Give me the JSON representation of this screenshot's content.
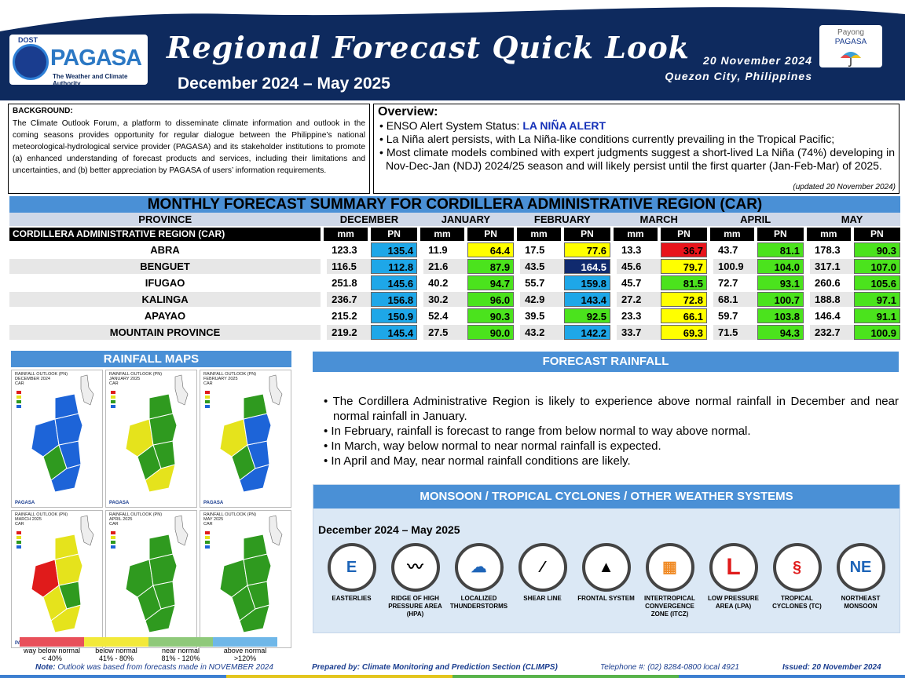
{
  "header": {
    "title": "Regional Forecast Quick Look",
    "period": "December 2024 – May 2025",
    "date": "20 November 2024",
    "place": "Quezon City, Philippines",
    "logo_top": "DOST",
    "logo_name": "PAGASA",
    "logo_tag": "The Weather and Climate Authority",
    "payong_1": "Payong",
    "payong_2": "PAGASA"
  },
  "background": {
    "heading": "BACKGROUND:",
    "text": "The Climate Outlook Forum, a platform to disseminate climate information and outlook in the coming seasons provides opportunity for regular dialogue between the Philippine’s national meteorological-hydrological service provider (PAGASA) and its stakeholder institutions to promote (a) enhanced understanding of forecast products and services, including their limitations and uncertainties, and (b) better appreciation by PAGASA of users’ information requirements."
  },
  "overview": {
    "heading": "Overview:",
    "enso_label": "ENSO Alert System Status: ",
    "enso_status": "LA NIÑA ALERT",
    "b2": "La Niña alert persists, with La Niña-like conditions currently prevailing in the Tropical Pacific;",
    "b3": "Most climate models combined with expert judgments suggest a short-lived La Niña (74%) developing in Nov-Dec-Jan (NDJ) 2024/25 season and will likely persist until the first quarter (Jan-Feb-Mar) of 2025.",
    "updated": "(updated 20 November 2024)"
  },
  "table": {
    "title": "MONTHLY FORECAST SUMMARY FOR CORDILLERA ADMINISTRATIVE REGION (CAR)",
    "province_header": "PROVINCE",
    "region": "CORDILLERA ADMINISTRATIVE REGION (CAR)",
    "months": [
      "DECEMBER",
      "JANUARY",
      "FEBRUARY",
      "MARCH",
      "APRIL",
      "MAY"
    ],
    "mm_label": "mm",
    "pn_label": "PN",
    "rows": [
      {
        "name": "ABRA",
        "mm": [
          "123.3",
          "11.9",
          "17.5",
          "13.3",
          "43.7",
          "178.3"
        ],
        "pn": [
          "135.4",
          "64.4",
          "77.6",
          "36.7",
          "81.1",
          "90.3"
        ],
        "cls": [
          "an",
          "bn",
          "bn",
          "wb",
          "nn",
          "nn"
        ]
      },
      {
        "name": "BENGUET",
        "mm": [
          "116.5",
          "21.6",
          "43.5",
          "45.6",
          "100.9",
          "317.1"
        ],
        "pn": [
          "112.8",
          "87.9",
          "164.5",
          "79.7",
          "104.0",
          "107.0"
        ],
        "cls": [
          "an",
          "nn",
          "wa",
          "bn",
          "nn",
          "nn"
        ]
      },
      {
        "name": "IFUGAO",
        "mm": [
          "251.8",
          "40.2",
          "55.7",
          "45.7",
          "72.7",
          "260.6"
        ],
        "pn": [
          "145.6",
          "94.7",
          "159.8",
          "81.5",
          "93.1",
          "105.6"
        ],
        "cls": [
          "an",
          "nn",
          "an",
          "nn",
          "nn",
          "nn"
        ]
      },
      {
        "name": "KALINGA",
        "mm": [
          "236.7",
          "30.2",
          "42.9",
          "27.2",
          "68.1",
          "188.8"
        ],
        "pn": [
          "156.8",
          "96.0",
          "143.4",
          "72.8",
          "100.7",
          "97.1"
        ],
        "cls": [
          "an",
          "nn",
          "an",
          "bn",
          "nn",
          "nn"
        ]
      },
      {
        "name": "APAYAO",
        "mm": [
          "215.2",
          "52.4",
          "39.5",
          "23.3",
          "59.7",
          "146.4"
        ],
        "pn": [
          "150.9",
          "90.3",
          "92.5",
          "66.1",
          "103.8",
          "91.1"
        ],
        "cls": [
          "an",
          "nn",
          "nn",
          "bn",
          "nn",
          "nn"
        ]
      },
      {
        "name": "MOUNTAIN PROVINCE",
        "mm": [
          "219.2",
          "27.5",
          "43.2",
          "33.7",
          "71.5",
          "232.7"
        ],
        "pn": [
          "145.4",
          "90.0",
          "142.2",
          "69.3",
          "94.3",
          "100.9"
        ],
        "cls": [
          "an",
          "nn",
          "an",
          "bn",
          "nn",
          "nn"
        ]
      }
    ],
    "colors": {
      "wb": "#e8141b",
      "bn": "#ffff00",
      "nn": "#4be31d",
      "an": "#1ea7e8",
      "wa": "#102a6e"
    }
  },
  "rainfall_maps": {
    "title": "RAINFALL MAPS",
    "maps": [
      {
        "t1": "RAINFALL OUTLOOK (PN)",
        "t2": "DECEMBER 2024",
        "t3": "CAR",
        "colors": [
          "#1d64d8",
          "#2f9a1f",
          "#1d64d8",
          "#1d64d8",
          "#1d64d8",
          "#1d64d8"
        ]
      },
      {
        "t1": "RAINFALL OUTLOOK (PN)",
        "t2": "JANUARY 2025",
        "t3": "CAR",
        "colors": [
          "#e5e31c",
          "#2f9a1f",
          "#2f9a1f",
          "#2f9a1f",
          "#2f9a1f",
          "#e5e31c"
        ]
      },
      {
        "t1": "RAINFALL OUTLOOK (PN)",
        "t2": "FEBRUARY 2025",
        "t3": "CAR",
        "colors": [
          "#e5e31c",
          "#2f9a1f",
          "#1d64d8",
          "#1d64d8",
          "#2f9a1f",
          "#1d64d8"
        ]
      },
      {
        "t1": "RAINFALL OUTLOOK (PN)",
        "t2": "MARCH 2025",
        "t3": "CAR",
        "colors": [
          "#e01b1b",
          "#e5e31c",
          "#2f9a1f",
          "#e5e31c",
          "#e5e31c",
          "#e5e31c"
        ]
      },
      {
        "t1": "RAINFALL OUTLOOK (PN)",
        "t2": "APRIL 2025",
        "t3": "CAR",
        "colors": [
          "#2f9a1f",
          "#2f9a1f",
          "#2f9a1f",
          "#2f9a1f",
          "#2f9a1f",
          "#2f9a1f"
        ]
      },
      {
        "t1": "RAINFALL OUTLOOK (PN)",
        "t2": "MAY 2025",
        "t3": "CAR",
        "colors": [
          "#2f9a1f",
          "#2f9a1f",
          "#2f9a1f",
          "#2f9a1f",
          "#2f9a1f",
          "#2f9a1f"
        ]
      }
    ],
    "legend": [
      {
        "l1": "way below normal",
        "l2": "< 40%",
        "color": "#e8505a"
      },
      {
        "l1": "below normal",
        "l2": "41% - 80%",
        "color": "#f2e93a"
      },
      {
        "l1": "near normal",
        "l2": "81% - 120%",
        "color": "#8fc97a"
      },
      {
        "l1": "above normal",
        "l2": ">120%",
        "color": "#6fb7e8"
      }
    ]
  },
  "forecast_rainfall": {
    "title": "FORECAST RAINFALL",
    "bullets": [
      "The Cordillera Administrative Region is likely to experience above normal rainfall in December and near normal rainfall in January.",
      "In February, rainfall is forecast to range from below normal to way above normal.",
      "In March, way below normal to near normal rainfall is expected.",
      "In April and May, near normal rainfall conditions are likely."
    ]
  },
  "monsoon": {
    "title": "MONSOON / TROPICAL CYCLONES / OTHER WEATHER SYSTEMS",
    "period": "December 2024 – May 2025",
    "systems": [
      {
        "icon": "easterlies-icon",
        "label": "EASTERLIES",
        "glyph": "E"
      },
      {
        "icon": "ridge-icon",
        "label": "RIDGE OF HIGH PRESSURE AREA (HPA)",
        "glyph": "〰"
      },
      {
        "icon": "thunderstorm-icon",
        "label": "LOCALIZED THUNDERSTORMS",
        "glyph": "☁"
      },
      {
        "icon": "shear-line-icon",
        "label": "SHEAR LINE",
        "glyph": "⁄"
      },
      {
        "icon": "frontal-system-icon",
        "label": "FRONTAL SYSTEM",
        "glyph": "▲"
      },
      {
        "icon": "itcz-icon",
        "label": "INTERTROPICAL CONVERGENCE ZONE (ITCZ)",
        "glyph": "▦"
      },
      {
        "icon": "lpa-icon",
        "label": "LOW PRESSURE AREA (LPA)",
        "glyph": "L"
      },
      {
        "icon": "tropical-cyclone-icon",
        "label": "TROPICAL CYCLONES (TC)",
        "glyph": "§"
      },
      {
        "icon": "ne-monsoon-icon",
        "label": "NORTHEAST MONSOON",
        "glyph": "NE"
      }
    ]
  },
  "footer": {
    "note_label": "Note:",
    "note": "Outlook was based from forecasts made in NOVEMBER 2024",
    "prepared": "Prepared by: Climate Monitoring and Prediction Section (CLIMPS)",
    "phone": "Telephone #: (02) 8284-0800 local 4921",
    "issued": "Issued: 20 November 2024"
  }
}
